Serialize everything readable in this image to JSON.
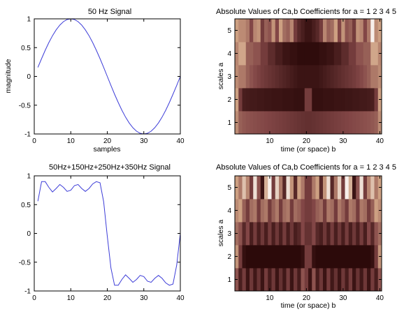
{
  "colors": {
    "line": "#3d3dd8",
    "background": "#ffffff",
    "axes": "#000000",
    "colormap": "pink"
  },
  "chart_data": [
    {
      "type": "line",
      "title": "50 Hz Signal",
      "xlabel": "samples",
      "ylabel": "magnitude",
      "xlim": [
        0,
        40
      ],
      "ylim": [
        -1,
        1
      ],
      "x_ticks": [
        "0",
        "10",
        "20",
        "30",
        "40"
      ],
      "y_ticks": [
        "-1",
        "-0.5",
        "0",
        "0.5",
        "1"
      ],
      "series": [
        {
          "x": [
            1,
            2,
            3,
            4,
            5,
            6,
            7,
            8,
            9,
            10,
            11,
            12,
            13,
            14,
            15,
            16,
            17,
            18,
            19,
            20,
            21,
            22,
            23,
            24,
            25,
            26,
            27,
            28,
            29,
            30,
            31,
            32,
            33,
            34,
            35,
            36,
            37,
            38,
            39,
            40
          ],
          "values": [
            0.156,
            0.309,
            0.454,
            0.588,
            0.707,
            0.809,
            0.891,
            0.951,
            0.988,
            1.0,
            0.988,
            0.951,
            0.891,
            0.809,
            0.707,
            0.588,
            0.454,
            0.309,
            0.156,
            0.0,
            -0.156,
            -0.309,
            -0.454,
            -0.588,
            -0.707,
            -0.809,
            -0.891,
            -0.951,
            -0.988,
            -1.0,
            -0.988,
            -0.951,
            -0.891,
            -0.809,
            -0.707,
            -0.588,
            -0.454,
            -0.309,
            -0.156,
            0.0
          ]
        }
      ]
    },
    {
      "type": "heatmap",
      "title": "Absolute Values of Ca,b Coefficients for a =  1 2 3 4 5",
      "xlabel": "time (or space) b",
      "ylabel": "scales a",
      "xlim": [
        0.5,
        40.5
      ],
      "x_ticks": [
        "10",
        "20",
        "30",
        "40"
      ],
      "y_ticks": [
        "1",
        "2",
        "3",
        "4",
        "5"
      ],
      "rows": [
        {
          "scale": "1",
          "values": [
            0.62,
            0.45,
            0.42,
            0.4,
            0.39,
            0.38,
            0.37,
            0.36,
            0.35,
            0.34,
            0.33,
            0.32,
            0.31,
            0.3,
            0.29,
            0.28,
            0.27,
            0.26,
            0.25,
            0.24,
            0.24,
            0.25,
            0.26,
            0.27,
            0.28,
            0.29,
            0.3,
            0.31,
            0.32,
            0.33,
            0.34,
            0.35,
            0.36,
            0.37,
            0.38,
            0.39,
            0.4,
            0.42,
            0.45,
            0.62
          ]
        },
        {
          "scale": "2",
          "values": [
            0.7,
            0.3,
            0.15,
            0.14,
            0.13,
            0.13,
            0.12,
            0.12,
            0.11,
            0.11,
            0.1,
            0.1,
            0.1,
            0.09,
            0.09,
            0.09,
            0.08,
            0.08,
            0.08,
            0.3,
            0.3,
            0.08,
            0.08,
            0.08,
            0.09,
            0.09,
            0.09,
            0.1,
            0.1,
            0.1,
            0.11,
            0.11,
            0.12,
            0.12,
            0.13,
            0.13,
            0.14,
            0.15,
            0.3,
            0.7
          ]
        },
        {
          "scale": "3",
          "values": [
            0.62,
            0.55,
            0.55,
            0.45,
            0.4,
            0.36,
            0.33,
            0.3,
            0.28,
            0.26,
            0.24,
            0.22,
            0.2,
            0.18,
            0.16,
            0.14,
            0.12,
            0.1,
            0.1,
            0.1,
            0.1,
            0.1,
            0.1,
            0.12,
            0.14,
            0.16,
            0.18,
            0.2,
            0.22,
            0.24,
            0.26,
            0.28,
            0.3,
            0.33,
            0.36,
            0.4,
            0.45,
            0.55,
            0.55,
            0.62
          ]
        },
        {
          "scale": "4",
          "values": [
            0.6,
            0.72,
            0.72,
            0.45,
            0.45,
            0.4,
            0.4,
            0.3,
            0.3,
            0.22,
            0.22,
            0.15,
            0.15,
            0.1,
            0.1,
            0.08,
            0.08,
            0.06,
            0.06,
            0.06,
            0.06,
            0.06,
            0.06,
            0.08,
            0.08,
            0.1,
            0.1,
            0.15,
            0.15,
            0.22,
            0.22,
            0.3,
            0.3,
            0.4,
            0.4,
            0.45,
            0.45,
            0.72,
            0.72,
            0.6
          ]
        },
        {
          "scale": "5",
          "values": [
            0.7,
            0.62,
            0.62,
            0.55,
            0.35,
            0.6,
            0.65,
            0.3,
            0.45,
            0.4,
            0.65,
            0.35,
            0.7,
            0.5,
            0.45,
            0.6,
            0.3,
            0.2,
            0.15,
            0.1,
            0.1,
            0.15,
            0.2,
            0.3,
            0.6,
            0.45,
            0.5,
            0.7,
            0.35,
            0.65,
            0.4,
            0.45,
            0.3,
            0.65,
            0.6,
            0.35,
            0.55,
            0.95,
            0.62,
            0.7
          ]
        }
      ]
    },
    {
      "type": "line",
      "title": "50Hz+150Hz+250Hz+350Hz Signal",
      "xlim": [
        0,
        40
      ],
      "ylim": [
        -1,
        1
      ],
      "x_ticks": [
        "0",
        "10",
        "20",
        "30",
        "40"
      ],
      "y_ticks": [
        "-1",
        "-0.5",
        "0",
        "0.5",
        "1"
      ],
      "series": [
        {
          "x": [
            1,
            2,
            3,
            4,
            5,
            6,
            7,
            8,
            9,
            10,
            11,
            12,
            13,
            14,
            15,
            16,
            17,
            18,
            19,
            20,
            21,
            22,
            23,
            24,
            25,
            26,
            27,
            28,
            29,
            30,
            31,
            32,
            33,
            34,
            35,
            36,
            37,
            38,
            39,
            40
          ],
          "values": [
            0.56,
            0.9,
            0.9,
            0.8,
            0.72,
            0.78,
            0.85,
            0.8,
            0.73,
            0.75,
            0.83,
            0.85,
            0.78,
            0.73,
            0.78,
            0.86,
            0.9,
            0.88,
            0.55,
            -0.05,
            -0.6,
            -0.9,
            -0.9,
            -0.8,
            -0.72,
            -0.78,
            -0.85,
            -0.8,
            -0.73,
            -0.75,
            -0.83,
            -0.85,
            -0.78,
            -0.73,
            -0.78,
            -0.86,
            -0.9,
            -0.88,
            -0.55,
            0.0
          ]
        }
      ]
    },
    {
      "type": "heatmap",
      "title": "Absolute Values of Ca,b Coefficients for a =  1 2 3 4 5",
      "xlabel": "time (or space) b",
      "ylabel": "scales a",
      "xlim": [
        0.5,
        40.5
      ],
      "x_ticks": [
        "10",
        "20",
        "30",
        "40"
      ],
      "y_ticks": [
        "1",
        "2",
        "3",
        "4",
        "5"
      ],
      "rows": [
        {
          "scale": "1",
          "values": [
            0.4,
            0.15,
            0.3,
            0.1,
            0.28,
            0.12,
            0.26,
            0.1,
            0.3,
            0.14,
            0.28,
            0.1,
            0.25,
            0.12,
            0.3,
            0.1,
            0.28,
            0.14,
            0.4,
            0.3,
            0.1,
            0.4,
            0.14,
            0.28,
            0.1,
            0.3,
            0.12,
            0.25,
            0.1,
            0.28,
            0.14,
            0.3,
            0.1,
            0.26,
            0.12,
            0.28,
            0.1,
            0.3,
            0.15,
            0.4
          ]
        },
        {
          "scale": "2",
          "values": [
            0.65,
            0.3,
            0.08,
            0.05,
            0.05,
            0.05,
            0.05,
            0.05,
            0.05,
            0.05,
            0.05,
            0.05,
            0.05,
            0.05,
            0.05,
            0.05,
            0.05,
            0.05,
            0.08,
            0.3,
            0.3,
            0.08,
            0.05,
            0.05,
            0.05,
            0.05,
            0.05,
            0.05,
            0.05,
            0.05,
            0.05,
            0.05,
            0.05,
            0.05,
            0.05,
            0.05,
            0.05,
            0.08,
            0.3,
            0.65
          ]
        },
        {
          "scale": "3",
          "values": [
            0.5,
            0.4,
            0.2,
            0.35,
            0.15,
            0.3,
            0.15,
            0.28,
            0.15,
            0.3,
            0.15,
            0.28,
            0.15,
            0.3,
            0.15,
            0.28,
            0.15,
            0.2,
            0.35,
            0.25,
            0.25,
            0.35,
            0.2,
            0.15,
            0.28,
            0.15,
            0.3,
            0.15,
            0.28,
            0.15,
            0.3,
            0.15,
            0.28,
            0.15,
            0.3,
            0.15,
            0.35,
            0.2,
            0.4,
            0.5
          ]
        },
        {
          "scale": "4",
          "values": [
            0.62,
            0.7,
            0.45,
            0.3,
            0.5,
            0.55,
            0.3,
            0.5,
            0.55,
            0.3,
            0.45,
            0.55,
            0.3,
            0.5,
            0.55,
            0.3,
            0.5,
            0.45,
            0.35,
            0.3,
            0.3,
            0.35,
            0.45,
            0.5,
            0.3,
            0.55,
            0.5,
            0.3,
            0.55,
            0.45,
            0.3,
            0.55,
            0.5,
            0.3,
            0.55,
            0.5,
            0.3,
            0.45,
            0.7,
            0.62
          ]
        },
        {
          "scale": "5",
          "values": [
            0.7,
            0.55,
            0.8,
            0.6,
            0.3,
            0.9,
            0.4,
            0.1,
            0.75,
            0.95,
            0.3,
            0.85,
            0.55,
            0.2,
            0.9,
            0.65,
            0.2,
            0.7,
            0.55,
            0.3,
            0.3,
            0.55,
            0.7,
            0.2,
            0.65,
            0.9,
            0.2,
            0.55,
            0.85,
            0.3,
            0.95,
            0.75,
            0.1,
            0.4,
            0.9,
            0.3,
            0.6,
            0.8,
            0.55,
            0.7
          ]
        }
      ]
    }
  ]
}
